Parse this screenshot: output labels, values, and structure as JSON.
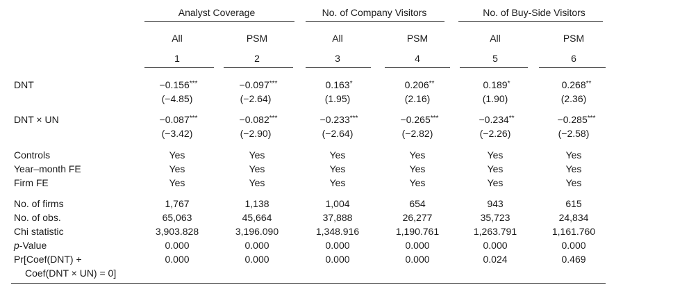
{
  "groups": [
    {
      "label": "Analyst Coverage"
    },
    {
      "label": "No. of Company Visitors"
    },
    {
      "label": "No. of Buy-Side Visitors"
    }
  ],
  "columns": [
    {
      "sample": "All",
      "number": "1"
    },
    {
      "sample": "PSM",
      "number": "2"
    },
    {
      "sample": "All",
      "number": "3"
    },
    {
      "sample": "PSM",
      "number": "4"
    },
    {
      "sample": "All",
      "number": "5"
    },
    {
      "sample": "PSM",
      "number": "6"
    }
  ],
  "coef_rows": [
    {
      "label": "DNT",
      "coefs": [
        {
          "value": "−0.156",
          "stars": "***"
        },
        {
          "value": "−0.097",
          "stars": "***"
        },
        {
          "value": "0.163",
          "stars": "*"
        },
        {
          "value": "0.206",
          "stars": "**"
        },
        {
          "value": "0.189",
          "stars": "*"
        },
        {
          "value": "0.268",
          "stars": "**"
        }
      ],
      "tstats": [
        "(−4.85)",
        "(−2.64)",
        "(1.95)",
        "(2.16)",
        "(1.90)",
        "(2.36)"
      ]
    },
    {
      "label": "DNT × UN",
      "coefs": [
        {
          "value": "−0.087",
          "stars": "***"
        },
        {
          "value": "−0.082",
          "stars": "***"
        },
        {
          "value": "−0.233",
          "stars": "***"
        },
        {
          "value": "−0.265",
          "stars": "***"
        },
        {
          "value": "−0.234",
          "stars": "**"
        },
        {
          "value": "−0.285",
          "stars": "***"
        }
      ],
      "tstats": [
        "(−3.42)",
        "(−2.90)",
        "(−2.64)",
        "(−2.82)",
        "(−2.26)",
        "(−2.58)"
      ]
    }
  ],
  "control_rows": [
    {
      "label": "Controls",
      "values": [
        "Yes",
        "Yes",
        "Yes",
        "Yes",
        "Yes",
        "Yes"
      ]
    },
    {
      "label": "Year–month FE",
      "values": [
        "Yes",
        "Yes",
        "Yes",
        "Yes",
        "Yes",
        "Yes"
      ]
    },
    {
      "label": "Firm FE",
      "values": [
        "Yes",
        "Yes",
        "Yes",
        "Yes",
        "Yes",
        "Yes"
      ]
    }
  ],
  "stat_rows": [
    {
      "label": "No. of firms",
      "values": [
        "1,767",
        "1,138",
        "1,004",
        "654",
        "943",
        "615"
      ]
    },
    {
      "label": "No. of obs.",
      "values": [
        "65,063",
        "45,664",
        "37,888",
        "26,277",
        "35,723",
        "24,834"
      ]
    },
    {
      "label": "Chi statistic",
      "values": [
        "3,903.828",
        "3,196.090",
        "1,348.916",
        "1,190.761",
        "1,263.791",
        "1,161.760"
      ]
    },
    {
      "label_italic": "p",
      "label_rest": "-Value",
      "values": [
        "0.000",
        "0.000",
        "0.000",
        "0.000",
        "0.000",
        "0.000"
      ]
    },
    {
      "label_line1": "Pr[Coef(DNT) +",
      "label_line2": "Coef(DNT × UN) = 0]",
      "values": [
        "0.000",
        "0.000",
        "0.000",
        "0.000",
        "0.024",
        "0.469"
      ]
    }
  ]
}
